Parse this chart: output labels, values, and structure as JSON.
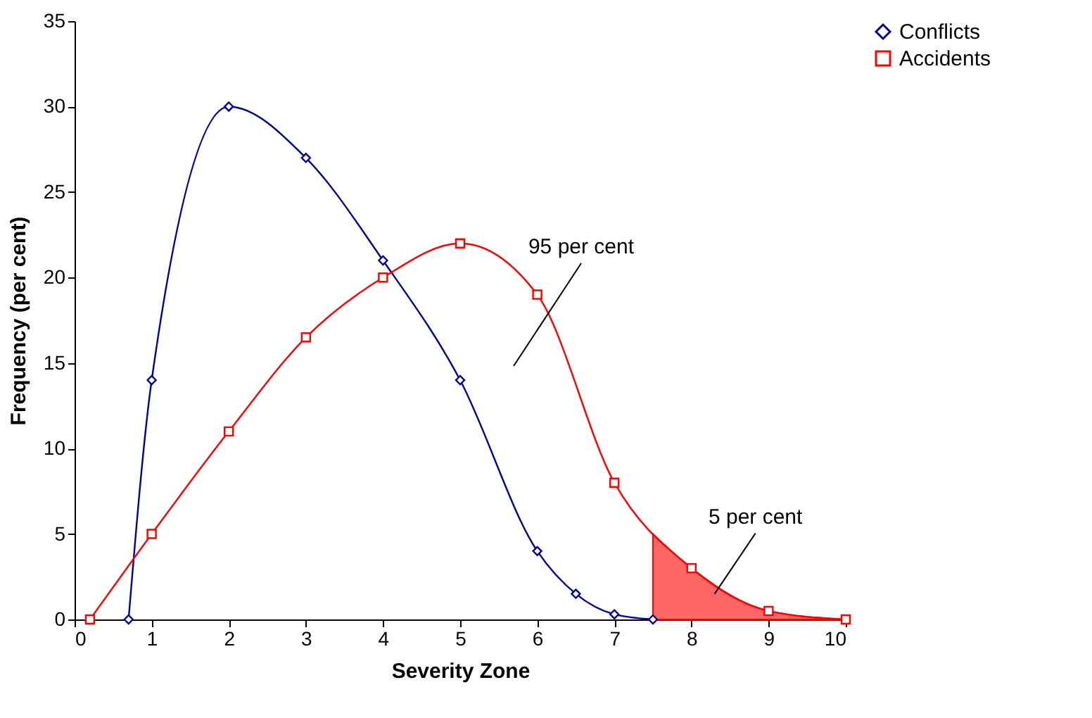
{
  "chart_data": {
    "type": "line",
    "xlabel": "Severity Zone",
    "ylabel": "Frequency (per cent)",
    "xlim": [
      0,
      10
    ],
    "ylim": [
      0,
      35
    ],
    "xticks": [
      0,
      1,
      2,
      3,
      4,
      5,
      6,
      7,
      8,
      9,
      10
    ],
    "yticks": [
      0,
      5,
      10,
      15,
      20,
      25,
      30,
      35
    ],
    "grid": false,
    "legend": "right",
    "series": [
      {
        "name": "Conflicts",
        "color": "#00009c",
        "marker": "diamond",
        "x": [
          0.7,
          1,
          2,
          3,
          4,
          5,
          6,
          6.5,
          7,
          7.5
        ],
        "values": [
          0,
          14,
          30,
          27,
          21,
          14,
          4,
          1.5,
          0.3,
          0
        ]
      },
      {
        "name": "Accidents",
        "color": "#ff0000",
        "marker": "square",
        "x": [
          0.2,
          1,
          2,
          3,
          4,
          5,
          6,
          7,
          8,
          9,
          10
        ],
        "values": [
          0,
          5,
          11,
          16.5,
          20,
          22,
          19,
          8,
          3,
          0.5,
          0
        ]
      },
      {
        "type": "area",
        "color": "#ff0000",
        "x": [
          7.5,
          8,
          9,
          10
        ],
        "values": [
          5,
          3,
          0.5,
          0
        ]
      }
    ],
    "annotations": [
      "95 per cent",
      {
        "text": "5 per cent",
        "x": 8.3,
        "y": 1.5
      }
    ]
  }
}
